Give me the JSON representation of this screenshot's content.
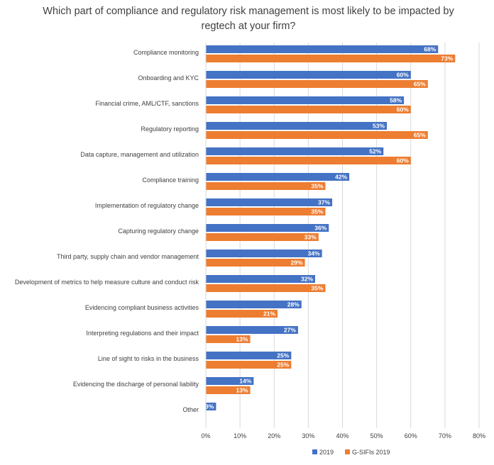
{
  "chart_data": {
    "type": "bar",
    "orientation": "horizontal",
    "title": "Which part of compliance and regulatory risk management is most likely to be impacted by regtech at your firm?",
    "categories": [
      "Compliance monitoring",
      "Onboarding and KYC",
      "Financial crime, AML/CTF, sanctions",
      "Regulatory reporting",
      "Data capture, management and utilization",
      "Compliance training",
      "Implementation of regulatory change",
      "Capturing regulatory change",
      "Third party, supply chain and vendor management",
      "Development of metrics to help measure culture and conduct risk",
      "Evidencing compliant business activities",
      "Interpreting regulations and their impact",
      "Line of sight to risks in the business",
      "Evidencing the discharge of personal liability",
      "Other"
    ],
    "series": [
      {
        "name": "2019",
        "color": "#4472C4",
        "values": [
          68,
          60,
          58,
          53,
          52,
          42,
          37,
          36,
          34,
          32,
          28,
          27,
          25,
          14,
          3
        ],
        "labels": [
          "68%",
          "60%",
          "58%",
          "53%",
          "52%",
          "42%",
          "37%",
          "36%",
          "34%",
          "32%",
          "28%",
          "27%",
          "25%",
          "14%",
          "3%"
        ]
      },
      {
        "name": "G-SIFIs 2019",
        "color": "#ED7D31",
        "values": [
          73,
          65,
          60,
          65,
          60,
          35,
          35,
          33,
          29,
          35,
          21,
          13,
          25,
          13,
          null
        ],
        "labels": [
          "73%",
          "65%",
          "60%",
          "65%",
          "60%",
          "35%",
          "35%",
          "33%",
          "29%",
          "35%",
          "21%",
          "13%",
          "25%",
          "13%",
          ""
        ]
      }
    ],
    "xlim": [
      0,
      80
    ],
    "xticks": [
      "0%",
      "10%",
      "20%",
      "30%",
      "40%",
      "50%",
      "60%",
      "70%",
      "80%"
    ],
    "legend_position": "bottom-right",
    "grid": true
  }
}
